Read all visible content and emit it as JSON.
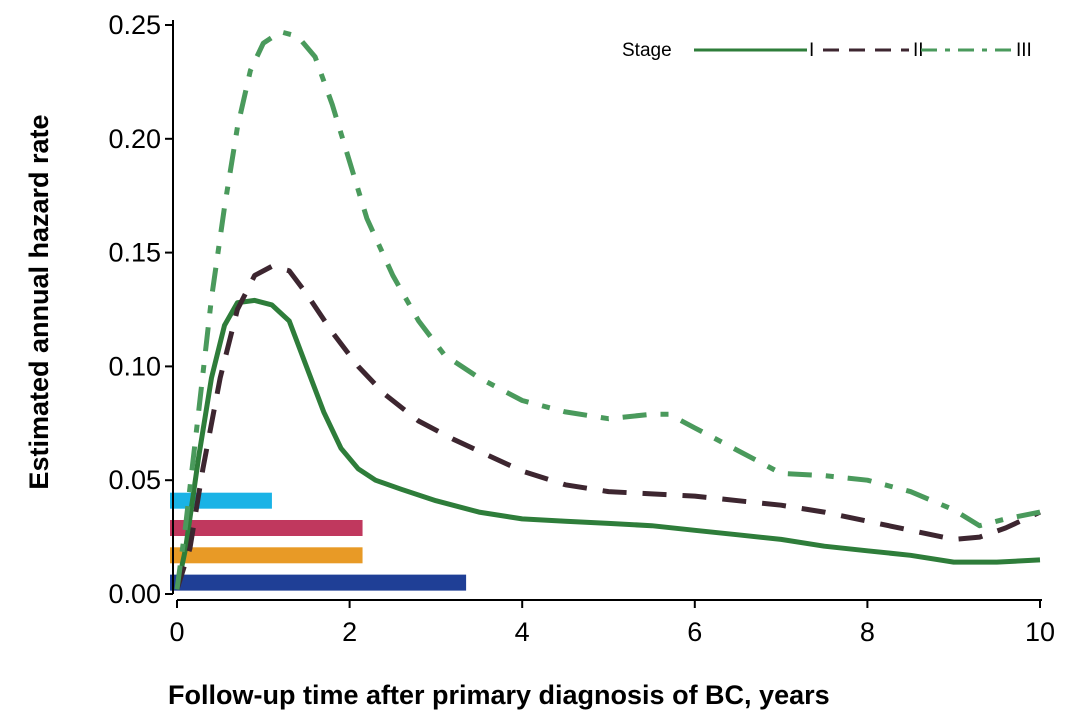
{
  "chart_data": {
    "type": "line",
    "xlabel": "Follow-up time after primary diagnosis of BC, years",
    "ylabel": "Estimated annual hazard rate",
    "xlim": [
      0,
      10
    ],
    "ylim": [
      0,
      0.25
    ],
    "x_ticks": [
      "0",
      "2",
      "4",
      "6",
      "8",
      "10"
    ],
    "y_ticks": [
      "0.00",
      "0.05",
      "0.10",
      "0.15",
      "0.20",
      "0.25"
    ],
    "grid": false,
    "legend": {
      "title": "Stage",
      "position": "top-right"
    },
    "series": [
      {
        "name": "I",
        "color": "#2e7d3a",
        "style": "solid",
        "x": [
          0,
          0.1,
          0.25,
          0.4,
          0.55,
          0.7,
          0.9,
          1.1,
          1.3,
          1.5,
          1.7,
          1.9,
          2.1,
          2.3,
          2.6,
          3.0,
          3.5,
          4.0,
          4.5,
          5.0,
          5.5,
          6.0,
          6.5,
          7.0,
          7.5,
          8.0,
          8.5,
          9.0,
          9.5,
          10.0
        ],
        "y": [
          0.002,
          0.02,
          0.06,
          0.095,
          0.118,
          0.128,
          0.129,
          0.127,
          0.12,
          0.1,
          0.08,
          0.064,
          0.055,
          0.05,
          0.046,
          0.041,
          0.036,
          0.033,
          0.032,
          0.031,
          0.03,
          0.028,
          0.026,
          0.024,
          0.021,
          0.019,
          0.017,
          0.014,
          0.014,
          0.015
        ]
      },
      {
        "name": "II",
        "color": "#3d2630",
        "style": "dashed",
        "x": [
          0,
          0.15,
          0.3,
          0.5,
          0.7,
          0.9,
          1.1,
          1.3,
          1.5,
          1.8,
          2.1,
          2.4,
          2.8,
          3.2,
          3.6,
          4.0,
          4.5,
          5.0,
          5.5,
          6.0,
          6.5,
          7.0,
          7.5,
          8.0,
          8.5,
          9.0,
          9.3,
          9.6,
          10.0
        ],
        "y": [
          0.002,
          0.02,
          0.055,
          0.095,
          0.125,
          0.14,
          0.144,
          0.142,
          0.132,
          0.115,
          0.1,
          0.088,
          0.076,
          0.068,
          0.061,
          0.054,
          0.048,
          0.045,
          0.044,
          0.043,
          0.041,
          0.039,
          0.036,
          0.032,
          0.028,
          0.024,
          0.025,
          0.029,
          0.036
        ]
      },
      {
        "name": "III",
        "color": "#4a9a5c",
        "style": "dash-dot",
        "x": [
          0,
          0.1,
          0.25,
          0.4,
          0.55,
          0.7,
          0.85,
          1.0,
          1.2,
          1.4,
          1.6,
          1.8,
          2.0,
          2.2,
          2.5,
          2.8,
          3.1,
          3.5,
          4.0,
          4.5,
          5.0,
          5.5,
          5.7,
          6.0,
          6.5,
          7.0,
          7.5,
          8.0,
          8.5,
          9.0,
          9.3,
          9.6,
          10.0
        ],
        "y": [
          0.002,
          0.03,
          0.08,
          0.13,
          0.17,
          0.205,
          0.23,
          0.242,
          0.247,
          0.245,
          0.236,
          0.215,
          0.19,
          0.165,
          0.14,
          0.12,
          0.105,
          0.095,
          0.085,
          0.08,
          0.077,
          0.079,
          0.079,
          0.073,
          0.063,
          0.053,
          0.052,
          0.05,
          0.045,
          0.037,
          0.03,
          0.033,
          0.036
        ]
      }
    ],
    "bars": [
      {
        "color": "#1ab3e6",
        "x_end": 1.1,
        "y": 0.041
      },
      {
        "color": "#c0385e",
        "x_end": 2.15,
        "y": 0.029
      },
      {
        "color": "#e89a26",
        "x_end": 2.15,
        "y": 0.017
      },
      {
        "color": "#1f3f96",
        "x_end": 3.35,
        "y": 0.005
      }
    ]
  }
}
